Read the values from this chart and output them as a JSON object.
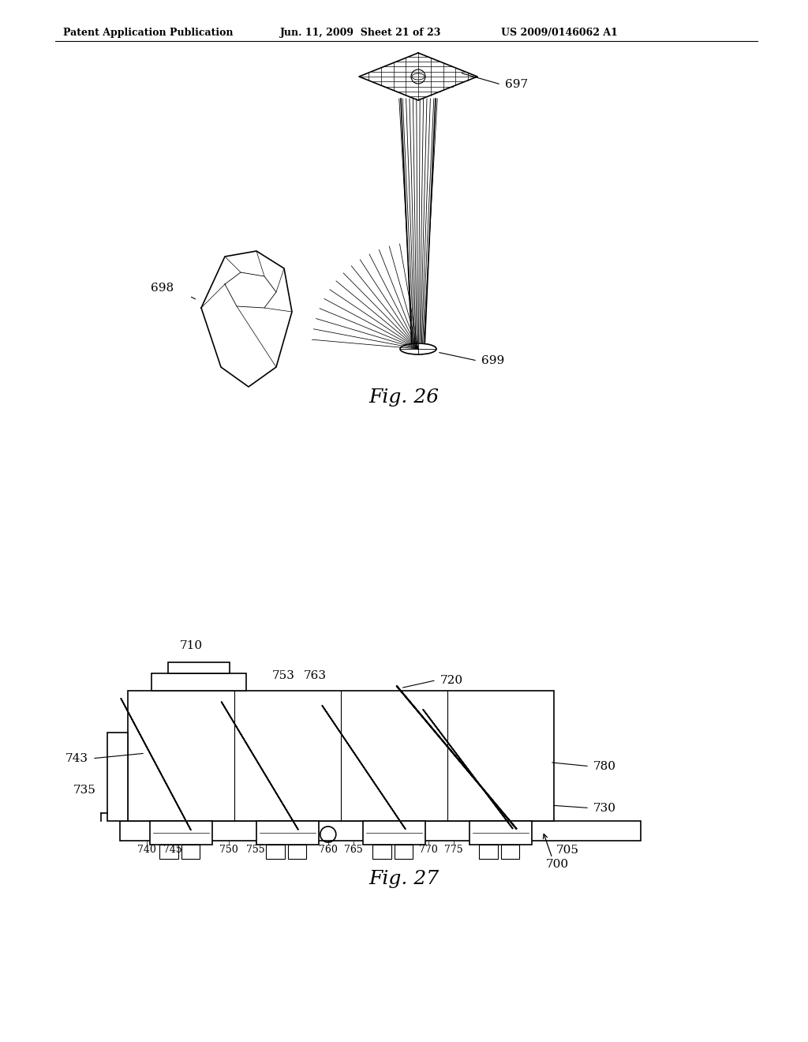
{
  "bg_color": "#ffffff",
  "line_color": "#000000",
  "header_text": "Patent Application Publication",
  "header_date": "Jun. 11, 2009  Sheet 21 of 23",
  "header_patent": "US 2009/0146062 A1"
}
